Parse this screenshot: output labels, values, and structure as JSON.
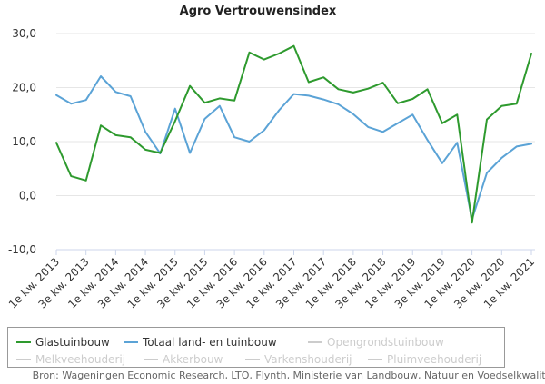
{
  "chart_data": {
    "type": "line",
    "title": "Agro Vertrouwensindex",
    "ylim": [
      -10,
      30
    ],
    "yticks": [
      "30,0",
      "20,0",
      "10,0",
      "0,0",
      "-10,0"
    ],
    "yticks_values": [
      30,
      20,
      10,
      0,
      -10
    ],
    "x": [
      "1e kw. 2013",
      "2e kw. 2013",
      "3e kw. 2013",
      "4e kw. 2013",
      "1e kw. 2014",
      "2e kw. 2014",
      "3e kw. 2014",
      "4e kw. 2014",
      "1e kw. 2015",
      "2e kw. 2015",
      "3e kw. 2015",
      "4e kw. 2015",
      "1e kw. 2016",
      "2e kw. 2016",
      "3e kw. 2016",
      "4e kw. 2016",
      "1e kw. 2017",
      "2e kw. 2017",
      "3e kw. 2017",
      "4e kw. 2017",
      "1e kw. 2018",
      "2e kw. 2018",
      "3e kw. 2018",
      "4e kw. 2018",
      "1e kw. 2019",
      "2e kw. 2019",
      "3e kw. 2019",
      "4e kw. 2019",
      "1e kw. 2020",
      "2e kw. 2020",
      "3e kw. 2020",
      "4e kw. 2020",
      "1e kw. 2021"
    ],
    "xtick_labels": [
      "1e kw. 2013",
      "3e kw. 2013",
      "1e kw. 2014",
      "3e kw. 2014",
      "1e kw. 2015",
      "3e kw. 2015",
      "1e kw. 2016",
      "3e kw. 2016",
      "1e kw. 2017",
      "3e kw. 2017",
      "1e kw. 2018",
      "3e kw. 2018",
      "1e kw. 2019",
      "3e kw. 2019",
      "1e kw. 2020",
      "3e kw. 2020",
      "1e kw. 2021"
    ],
    "series": [
      {
        "name": "Glastuinbouw",
        "color": "#2e9a2e",
        "visible": true,
        "values": [
          9.8,
          3.6,
          2.8,
          13.0,
          11.2,
          10.8,
          8.5,
          7.9,
          13.8,
          20.3,
          17.2,
          18.0,
          17.6,
          26.5,
          25.2,
          26.3,
          27.7,
          21.0,
          21.9,
          19.7,
          19.1,
          19.8,
          20.9,
          17.1,
          17.9,
          19.7,
          13.4,
          15.0,
          -5.0,
          14.1,
          16.6,
          17.0,
          26.3
        ]
      },
      {
        "name": "Totaal land- en tuinbouw",
        "color": "#5ba3d6",
        "visible": true,
        "values": [
          18.6,
          17.0,
          17.7,
          22.1,
          19.2,
          18.4,
          11.8,
          7.8,
          16.1,
          7.9,
          14.2,
          16.6,
          10.8,
          10.0,
          12.1,
          15.8,
          18.8,
          18.5,
          17.8,
          16.9,
          15.1,
          12.7,
          11.8,
          13.4,
          15.0,
          10.3,
          6.0,
          9.8,
          -4.4,
          4.2,
          7.0,
          9.1,
          9.6
        ]
      }
    ],
    "legend": {
      "placement": "bottom",
      "entries": [
        {
          "name": "Glastuinbouw",
          "color": "#2e9a2e",
          "active": true
        },
        {
          "name": "Totaal land- en tuinbouw",
          "color": "#5ba3d6",
          "active": true
        },
        {
          "name": "Opengrondstuinbouw",
          "color": "#cccccc",
          "active": false
        },
        {
          "name": "Melkveehouderij",
          "color": "#cccccc",
          "active": false
        },
        {
          "name": "Akkerbouw",
          "color": "#cccccc",
          "active": false
        },
        {
          "name": "Varkenshouderij",
          "color": "#cccccc",
          "active": false
        },
        {
          "name": "Pluimveehouderij",
          "color": "#cccccc",
          "active": false
        }
      ]
    },
    "grid": true,
    "source": "Bron: Wageningen Economic Research, LTO, Flynth, Ministerie van Landbouw, Natuur en Voedselkwaliteit."
  }
}
